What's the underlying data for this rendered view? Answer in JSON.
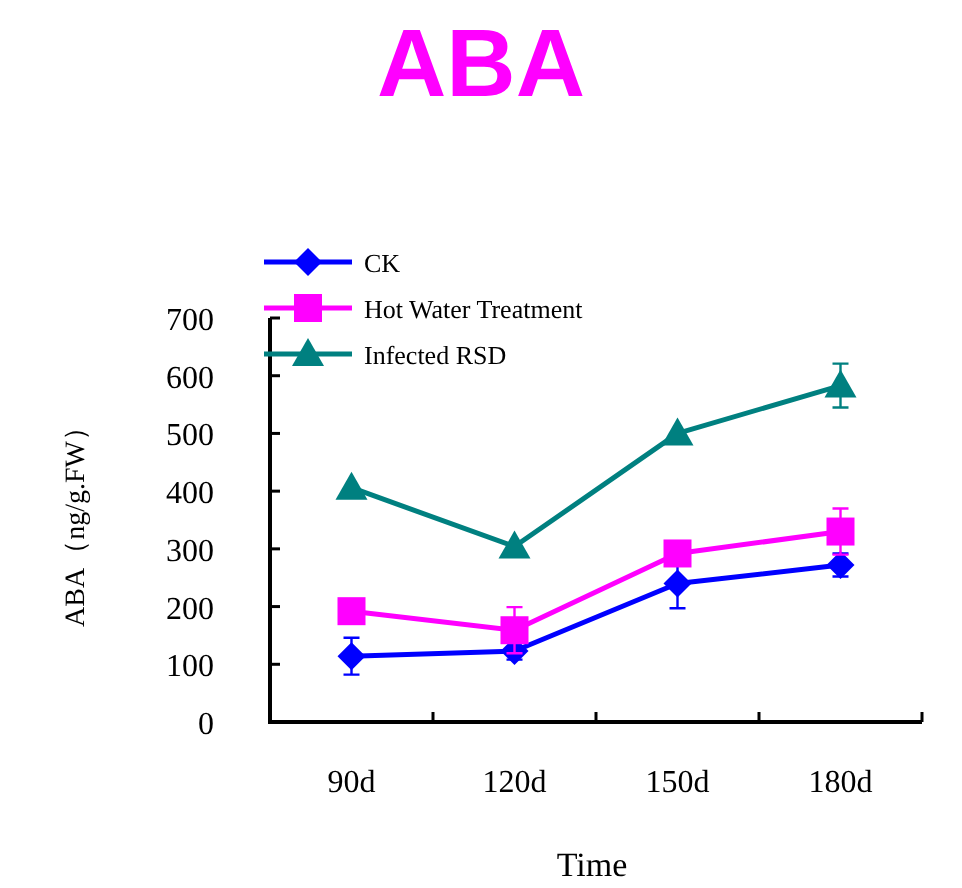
{
  "chart_data": {
    "type": "line",
    "title": "ABA",
    "xlabel": "Time",
    "ylabel": "ABA（ng/g.FW）",
    "categories": [
      "90d",
      "120d",
      "150d",
      "180d"
    ],
    "series": [
      {
        "name": "CK",
        "color": "#0000ff",
        "marker": "diamond",
        "values": [
          114,
          123,
          240,
          272
        ],
        "errors": [
          32,
          15,
          43,
          20
        ]
      },
      {
        "name": "Hot Water Treatment",
        "color": "#ff00ff",
        "marker": "square",
        "values": [
          192,
          159,
          292,
          330
        ],
        "errors": [
          null,
          40,
          null,
          40
        ]
      },
      {
        "name": "Infected RSD",
        "color": "#008080",
        "marker": "triangle",
        "values": [
          406,
          304,
          500,
          583
        ],
        "errors": [
          null,
          null,
          null,
          38
        ]
      }
    ],
    "ylim": [
      0,
      700
    ],
    "yticks": [
      0,
      100,
      200,
      300,
      400,
      500,
      600,
      700
    ],
    "grid": false,
    "legend": "top left",
    "line_style": "solid"
  }
}
